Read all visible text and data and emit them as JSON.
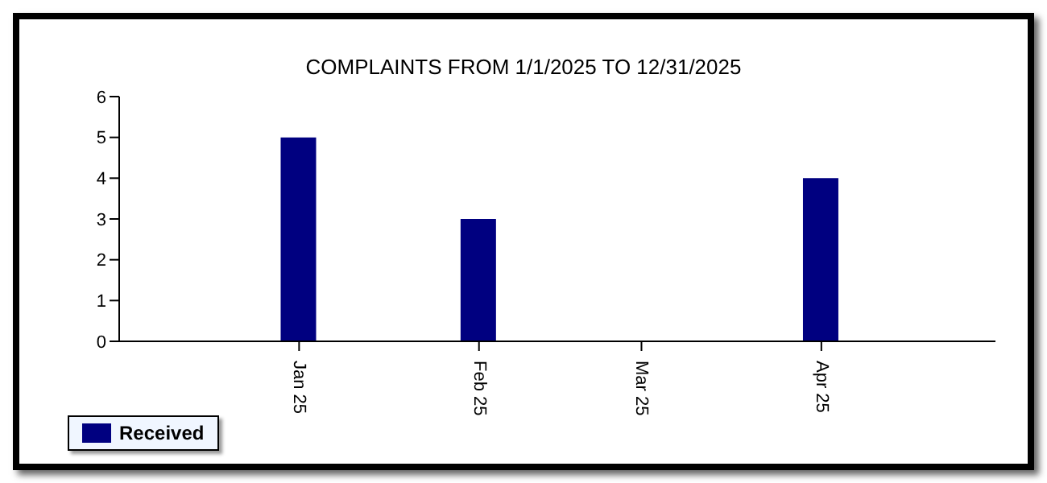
{
  "chart_data": {
    "type": "bar",
    "title": "COMPLAINTS FROM 1/1/2025 TO 12/31/2025",
    "x": [
      "2025-01-01",
      "2025-02-01",
      "2025-03-01",
      "2025-04-01"
    ],
    "series": [
      {
        "name": "Received",
        "color": "#000080",
        "values": [
          5,
          3,
          0,
          4
        ]
      }
    ],
    "xlim": [
      "2024-12-01",
      "2025-05-01"
    ],
    "xticks": [
      {
        "value": "2025-01-01",
        "label": "Jan 25"
      },
      {
        "value": "2025-02-01",
        "label": "Feb 25"
      },
      {
        "value": "2025-03-01",
        "label": "Mar 25"
      },
      {
        "value": "2025-04-01",
        "label": "Apr 25"
      }
    ],
    "ylim": [
      0,
      6
    ],
    "yticks": [
      0,
      1,
      2,
      3,
      4,
      5,
      6
    ],
    "grid": false,
    "legend": "bottom left"
  }
}
